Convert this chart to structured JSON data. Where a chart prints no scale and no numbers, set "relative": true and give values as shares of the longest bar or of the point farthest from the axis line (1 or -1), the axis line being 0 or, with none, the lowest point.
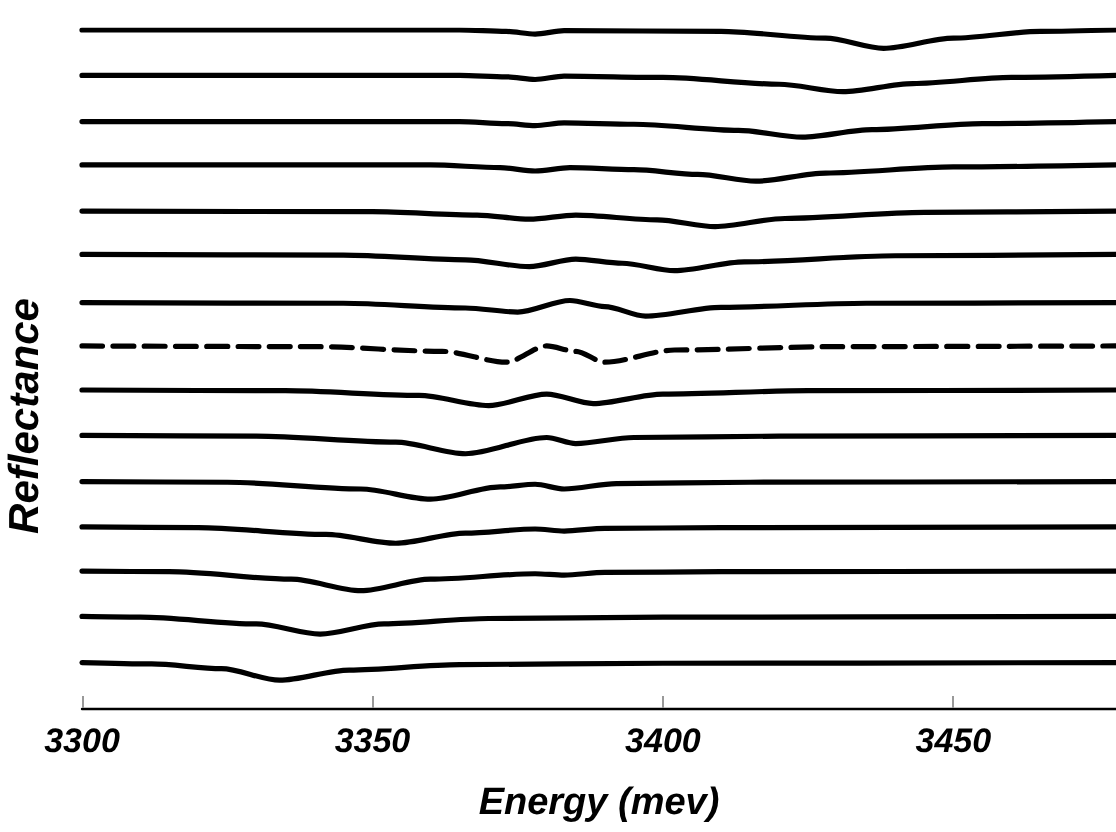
{
  "chart_data": {
    "type": "line",
    "xlabel": "Energy (mev)",
    "ylabel": "Reflectance",
    "relative": true,
    "xlim": [
      3300,
      3478
    ],
    "xticks": [
      3300,
      3350,
      3400,
      3450
    ],
    "marker": "none",
    "line_style": "solid",
    "series": [
      {
        "color": "#000000",
        "x": [
          3300,
          3365,
          3373,
          3378,
          3383,
          3410,
          3428,
          3438,
          3450,
          3465,
          3478
        ],
        "values": [
          1,
          1,
          0.998,
          0.994,
          0.999,
          0.998,
          0.988,
          0.973,
          0.988,
          0.998,
          1
        ]
      },
      {
        "color": "#000000",
        "x": [
          3300,
          3365,
          3373,
          3378,
          3383,
          3400,
          3420,
          3431,
          3443,
          3460,
          3478
        ],
        "values": [
          0.933,
          0.933,
          0.931,
          0.927,
          0.932,
          0.93,
          0.92,
          0.909,
          0.921,
          0.93,
          0.933
        ]
      },
      {
        "color": "#000000",
        "x": [
          3300,
          3365,
          3373,
          3378,
          3383,
          3395,
          3413,
          3424,
          3436,
          3455,
          3478
        ],
        "values": [
          0.865,
          0.865,
          0.862,
          0.859,
          0.863,
          0.861,
          0.852,
          0.842,
          0.853,
          0.862,
          0.865
        ]
      },
      {
        "color": "#000000",
        "x": [
          3300,
          3360,
          3372,
          3378,
          3384,
          3395,
          3406,
          3416,
          3428,
          3450,
          3478
        ],
        "values": [
          0.801,
          0.801,
          0.797,
          0.792,
          0.797,
          0.794,
          0.787,
          0.777,
          0.789,
          0.798,
          0.801
        ]
      },
      {
        "color": "#000000",
        "x": [
          3300,
          3350,
          3368,
          3377,
          3385,
          3399,
          3409,
          3421,
          3445,
          3478
        ],
        "values": [
          0.733,
          0.732,
          0.727,
          0.721,
          0.727,
          0.72,
          0.71,
          0.722,
          0.731,
          0.733
        ]
      },
      {
        "color": "#000000",
        "x": [
          3300,
          3345,
          3366,
          3377,
          3385,
          3393,
          3402,
          3414,
          3440,
          3478
        ],
        "values": [
          0.669,
          0.668,
          0.661,
          0.651,
          0.662,
          0.656,
          0.645,
          0.658,
          0.667,
          0.669
        ]
      },
      {
        "color": "#000000",
        "x": [
          3300,
          3345,
          3366,
          3375,
          3384,
          3390,
          3397,
          3410,
          3435,
          3478
        ],
        "values": [
          0.598,
          0.597,
          0.59,
          0.584,
          0.601,
          0.592,
          0.578,
          0.591,
          0.597,
          0.598
        ]
      },
      {
        "color": "#000000",
        "line_style": "dashed",
        "x": [
          3300,
          3340,
          3362,
          3373,
          3380,
          3385,
          3390,
          3402,
          3430,
          3478
        ],
        "values": [
          0.534,
          0.533,
          0.526,
          0.51,
          0.534,
          0.526,
          0.51,
          0.528,
          0.533,
          0.534
        ]
      },
      {
        "color": "#000000",
        "x": [
          3300,
          3335,
          3358,
          3370,
          3380,
          3388,
          3400,
          3425,
          3478
        ],
        "values": [
          0.469,
          0.468,
          0.461,
          0.446,
          0.463,
          0.449,
          0.463,
          0.468,
          0.469
        ]
      },
      {
        "color": "#000000",
        "x": [
          3300,
          3330,
          3354,
          3366,
          3380,
          3385,
          3395,
          3420,
          3478
        ],
        "values": [
          0.402,
          0.401,
          0.392,
          0.375,
          0.399,
          0.39,
          0.399,
          0.401,
          0.402
        ]
      },
      {
        "color": "#000000",
        "x": [
          3300,
          3325,
          3348,
          3360,
          3372,
          3378,
          3383,
          3392,
          3415,
          3478
        ],
        "values": [
          0.334,
          0.333,
          0.323,
          0.308,
          0.326,
          0.33,
          0.323,
          0.331,
          0.333,
          0.334
        ]
      },
      {
        "color": "#000000",
        "x": [
          3300,
          3320,
          3342,
          3354,
          3366,
          3378,
          3383,
          3390,
          3410,
          3478
        ],
        "values": [
          0.267,
          0.266,
          0.256,
          0.243,
          0.258,
          0.264,
          0.261,
          0.265,
          0.266,
          0.267
        ]
      },
      {
        "color": "#000000",
        "x": [
          3300,
          3315,
          3336,
          3348,
          3360,
          3378,
          3383,
          3390,
          3410,
          3478
        ],
        "values": [
          0.202,
          0.201,
          0.19,
          0.173,
          0.19,
          0.198,
          0.196,
          0.2,
          0.201,
          0.202
        ]
      },
      {
        "color": "#000000",
        "x": [
          3300,
          3310,
          3330,
          3341,
          3352,
          3370,
          3400,
          3478
        ],
        "values": [
          0.135,
          0.134,
          0.124,
          0.109,
          0.124,
          0.132,
          0.134,
          0.135
        ]
      },
      {
        "color": "#000000",
        "x": [
          3300,
          3312,
          3324,
          3334,
          3346,
          3365,
          3400,
          3478
        ],
        "values": [
          0.067,
          0.065,
          0.058,
          0.041,
          0.056,
          0.064,
          0.066,
          0.067
        ]
      }
    ]
  }
}
